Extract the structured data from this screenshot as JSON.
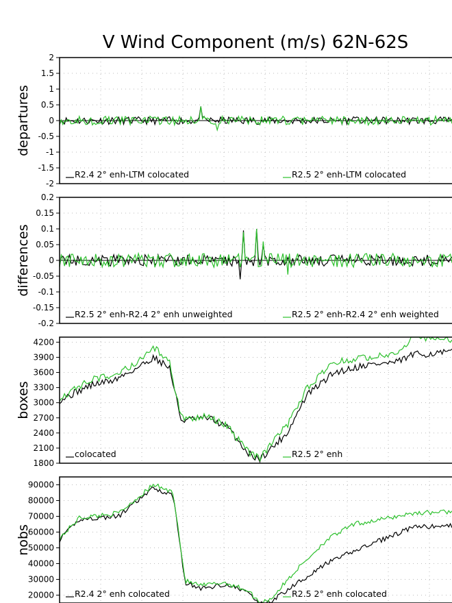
{
  "title": "V Wind Component (m/s) 62N-62S",
  "colors": {
    "series_a": "#000000",
    "series_b": "#2cc02c",
    "grid": "#bbbbbb"
  },
  "chart_data": [
    {
      "type": "line",
      "ylabel": "departures",
      "ylim": [
        -2,
        2
      ],
      "yticks": [
        2,
        1.5,
        1,
        0.5,
        0,
        -0.5,
        -1,
        -1.5,
        -2
      ],
      "ytick_labels": [
        "2",
        "1.5",
        "1",
        "0.5",
        "0",
        "-0.5",
        "-1",
        "-1.5",
        "-2"
      ],
      "zero_line": true,
      "grid": "dotted",
      "series": [
        {
          "name": "R2.4 2° enh-LTM colocated",
          "gen": {
            "kind": "noise",
            "amp": 0.12,
            "seed": 11,
            "spikes": [
              [
                0.36,
                0.45
              ],
              [
                0.75,
                0.12
              ]
            ]
          }
        },
        {
          "name": "R2.5 2° enh-LTM colocated",
          "gen": {
            "kind": "noise",
            "amp": 0.14,
            "seed": 12,
            "spikes": [
              [
                0.36,
                0.45
              ],
              [
                0.4,
                -0.3
              ]
            ]
          }
        }
      ]
    },
    {
      "type": "line",
      "ylabel": "differences",
      "ylim": [
        -0.2,
        0.2
      ],
      "yticks": [
        0.2,
        0.15,
        0.1,
        0.05,
        0,
        -0.05,
        -0.1,
        -0.15,
        -0.2
      ],
      "ytick_labels": [
        "0.2",
        "0.15",
        "0.1",
        "0.05",
        "0",
        "-0.05",
        "-0.1",
        "-0.15",
        "-0.2"
      ],
      "zero_line": true,
      "grid": "dotted",
      "series": [
        {
          "name": "R2.5 2° enh-R2.4 2° enh unweighted",
          "gen": {
            "kind": "noise",
            "amp": 0.018,
            "seed": 21,
            "spikes": [
              [
                0.47,
                0.095
              ],
              [
                0.46,
                -0.06
              ],
              [
                0.5,
                0.1
              ],
              [
                0.52,
                0.05
              ]
            ]
          }
        },
        {
          "name": "R2.5 2° enh-R2.4 2° enh weighted",
          "gen": {
            "kind": "noise",
            "amp": 0.022,
            "seed": 22,
            "spikes": [
              [
                0.47,
                0.09
              ],
              [
                0.5,
                0.1
              ],
              [
                0.52,
                0.06
              ],
              [
                0.58,
                -0.045
              ]
            ]
          }
        }
      ]
    },
    {
      "type": "line",
      "ylabel": "boxes",
      "ylim": [
        1800,
        4300
      ],
      "yticks": [
        4200,
        3900,
        3600,
        3300,
        3000,
        2700,
        2400,
        2100,
        1800
      ],
      "ytick_labels": [
        "4200",
        "3900",
        "3600",
        "3300",
        "3000",
        "2700",
        "2400",
        "2100",
        "1800"
      ],
      "zero_line": false,
      "grid": "dotted",
      "series": [
        {
          "name": "colocated",
          "gen": {
            "kind": "shape",
            "noise": 70,
            "seed": 31,
            "knots": [
              [
                0,
                3050
              ],
              [
                0.08,
                3350
              ],
              [
                0.14,
                3450
              ],
              [
                0.2,
                3700
              ],
              [
                0.24,
                3900
              ],
              [
                0.28,
                3700
              ],
              [
                0.31,
                2650
              ],
              [
                0.38,
                2700
              ],
              [
                0.43,
                2500
              ],
              [
                0.48,
                2000
              ],
              [
                0.51,
                1880
              ],
              [
                0.54,
                2100
              ],
              [
                0.58,
                2400
              ],
              [
                0.63,
                3150
              ],
              [
                0.7,
                3600
              ],
              [
                0.78,
                3750
              ],
              [
                0.86,
                3800
              ],
              [
                0.9,
                3950
              ],
              [
                1.0,
                4000
              ]
            ]
          }
        },
        {
          "name": "R2.5 2° enh",
          "gen": {
            "kind": "shape",
            "noise": 70,
            "seed": 32,
            "knots": [
              [
                0,
                3100
              ],
              [
                0.08,
                3450
              ],
              [
                0.14,
                3550
              ],
              [
                0.2,
                3800
              ],
              [
                0.24,
                4100
              ],
              [
                0.28,
                3800
              ],
              [
                0.31,
                2700
              ],
              [
                0.38,
                2720
              ],
              [
                0.43,
                2520
              ],
              [
                0.48,
                2020
              ],
              [
                0.51,
                1900
              ],
              [
                0.54,
                2200
              ],
              [
                0.58,
                2550
              ],
              [
                0.63,
                3300
              ],
              [
                0.7,
                3800
              ],
              [
                0.78,
                3900
              ],
              [
                0.86,
                4000
              ],
              [
                0.9,
                4300
              ],
              [
                1.0,
                4250
              ]
            ]
          }
        }
      ]
    },
    {
      "type": "line",
      "ylabel": "nobs",
      "ylim": [
        15000,
        95000
      ],
      "yticks": [
        90000,
        80000,
        70000,
        60000,
        50000,
        40000,
        30000,
        20000
      ],
      "ytick_labels": [
        "90000",
        "80000",
        "70000",
        "60000",
        "50000",
        "40000",
        "30000",
        "20000"
      ],
      "zero_line": false,
      "grid": "dotted",
      "series": [
        {
          "name": "R2.4 2° enh colocated",
          "gen": {
            "kind": "shape",
            "noise": 1500,
            "seed": 41,
            "knots": [
              [
                0,
                55000
              ],
              [
                0.05,
                68000
              ],
              [
                0.15,
                70000
              ],
              [
                0.24,
                88000
              ],
              [
                0.29,
                83000
              ],
              [
                0.32,
                28000
              ],
              [
                0.36,
                24000
              ],
              [
                0.42,
                27000
              ],
              [
                0.48,
                22000
              ],
              [
                0.51,
                14000
              ],
              [
                0.54,
                16000
              ],
              [
                0.6,
                27000
              ],
              [
                0.68,
                40000
              ],
              [
                0.75,
                48000
              ],
              [
                0.82,
                55000
              ],
              [
                0.9,
                63000
              ],
              [
                1.0,
                64000
              ]
            ]
          }
        },
        {
          "name": "R2.5 2° enh colocated",
          "gen": {
            "kind": "shape",
            "noise": 1500,
            "seed": 42,
            "knots": [
              [
                0,
                56000
              ],
              [
                0.05,
                69000
              ],
              [
                0.15,
                72000
              ],
              [
                0.24,
                90000
              ],
              [
                0.29,
                85000
              ],
              [
                0.32,
                29000
              ],
              [
                0.36,
                26000
              ],
              [
                0.42,
                28000
              ],
              [
                0.48,
                23000
              ],
              [
                0.51,
                15000
              ],
              [
                0.54,
                18000
              ],
              [
                0.6,
                35000
              ],
              [
                0.68,
                55000
              ],
              [
                0.75,
                65000
              ],
              [
                0.82,
                68000
              ],
              [
                0.9,
                72000
              ],
              [
                1.0,
                73000
              ]
            ]
          }
        }
      ]
    }
  ]
}
